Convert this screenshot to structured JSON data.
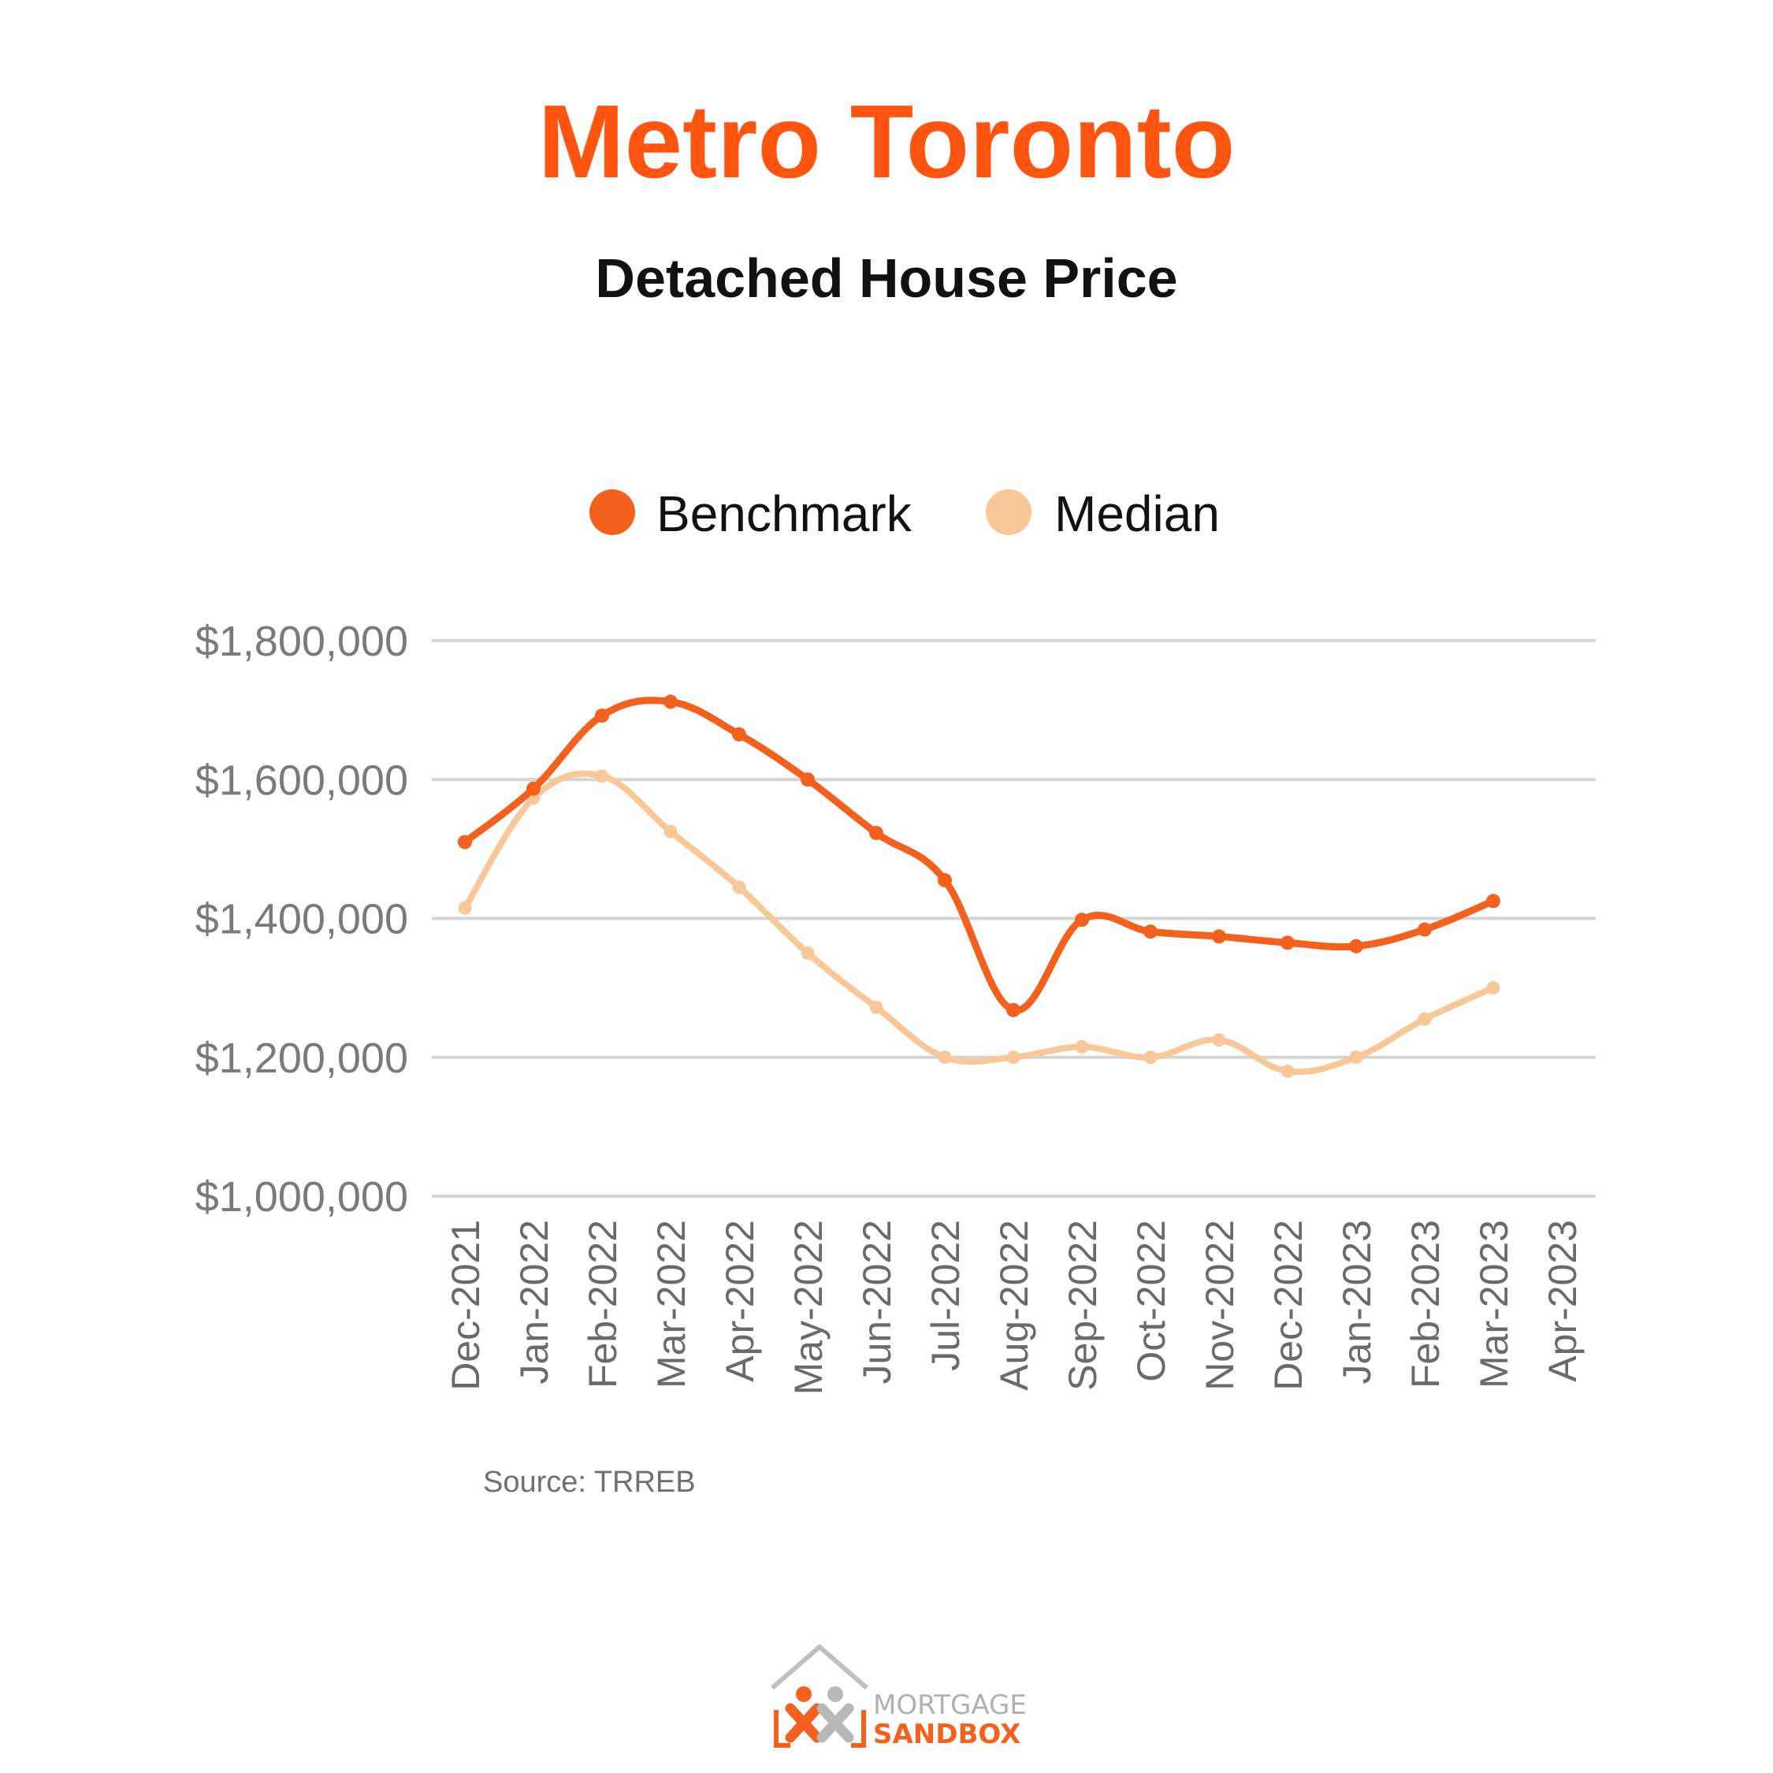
{
  "chart_data": {
    "type": "line",
    "title": "Metro Toronto",
    "subtitle": "Detached House Price",
    "categories": [
      "Dec-2021",
      "Jan-2022",
      "Feb-2022",
      "Mar-2022",
      "Apr-2022",
      "May-2022",
      "Jun-2022",
      "Jul-2022",
      "Aug-2022",
      "Sep-2022",
      "Oct-2022",
      "Nov-2022",
      "Dec-2022",
      "Jan-2023",
      "Feb-2023",
      "Mar-2023",
      "Apr-2023"
    ],
    "series": [
      {
        "name": "Benchmark",
        "color": "#F4611E",
        "values": [
          1510000,
          1587000,
          1692000,
          1712000,
          1665000,
          1600000,
          1523000,
          1455000,
          1268000,
          1398000,
          1381000,
          1374000,
          1365000,
          1360000,
          1384000,
          1425000,
          null
        ]
      },
      {
        "name": "Median",
        "color": "#F8C898",
        "values": [
          1415000,
          1573000,
          1605000,
          1525000,
          1445000,
          1350000,
          1272000,
          1200000,
          1200000,
          1215000,
          1200000,
          1225000,
          1180000,
          1200000,
          1255000,
          1300000,
          null
        ]
      }
    ],
    "yticks": [
      "$1,800,000",
      "$1,600,000",
      "$1,400,000",
      "$1,200,000",
      "$1,000,000"
    ],
    "ylim": [
      1000000,
      1800000
    ],
    "grid": true,
    "legend_position": "top-center",
    "source": "Source: TRREB"
  },
  "logo": {
    "line1": "MORTGAGE",
    "line2": "SANDBOX"
  },
  "colors": {
    "title": "#FF5511",
    "grid": "#d5d5d5",
    "logo_orange": "#F4611E",
    "logo_gray": "#b0b0b0"
  }
}
